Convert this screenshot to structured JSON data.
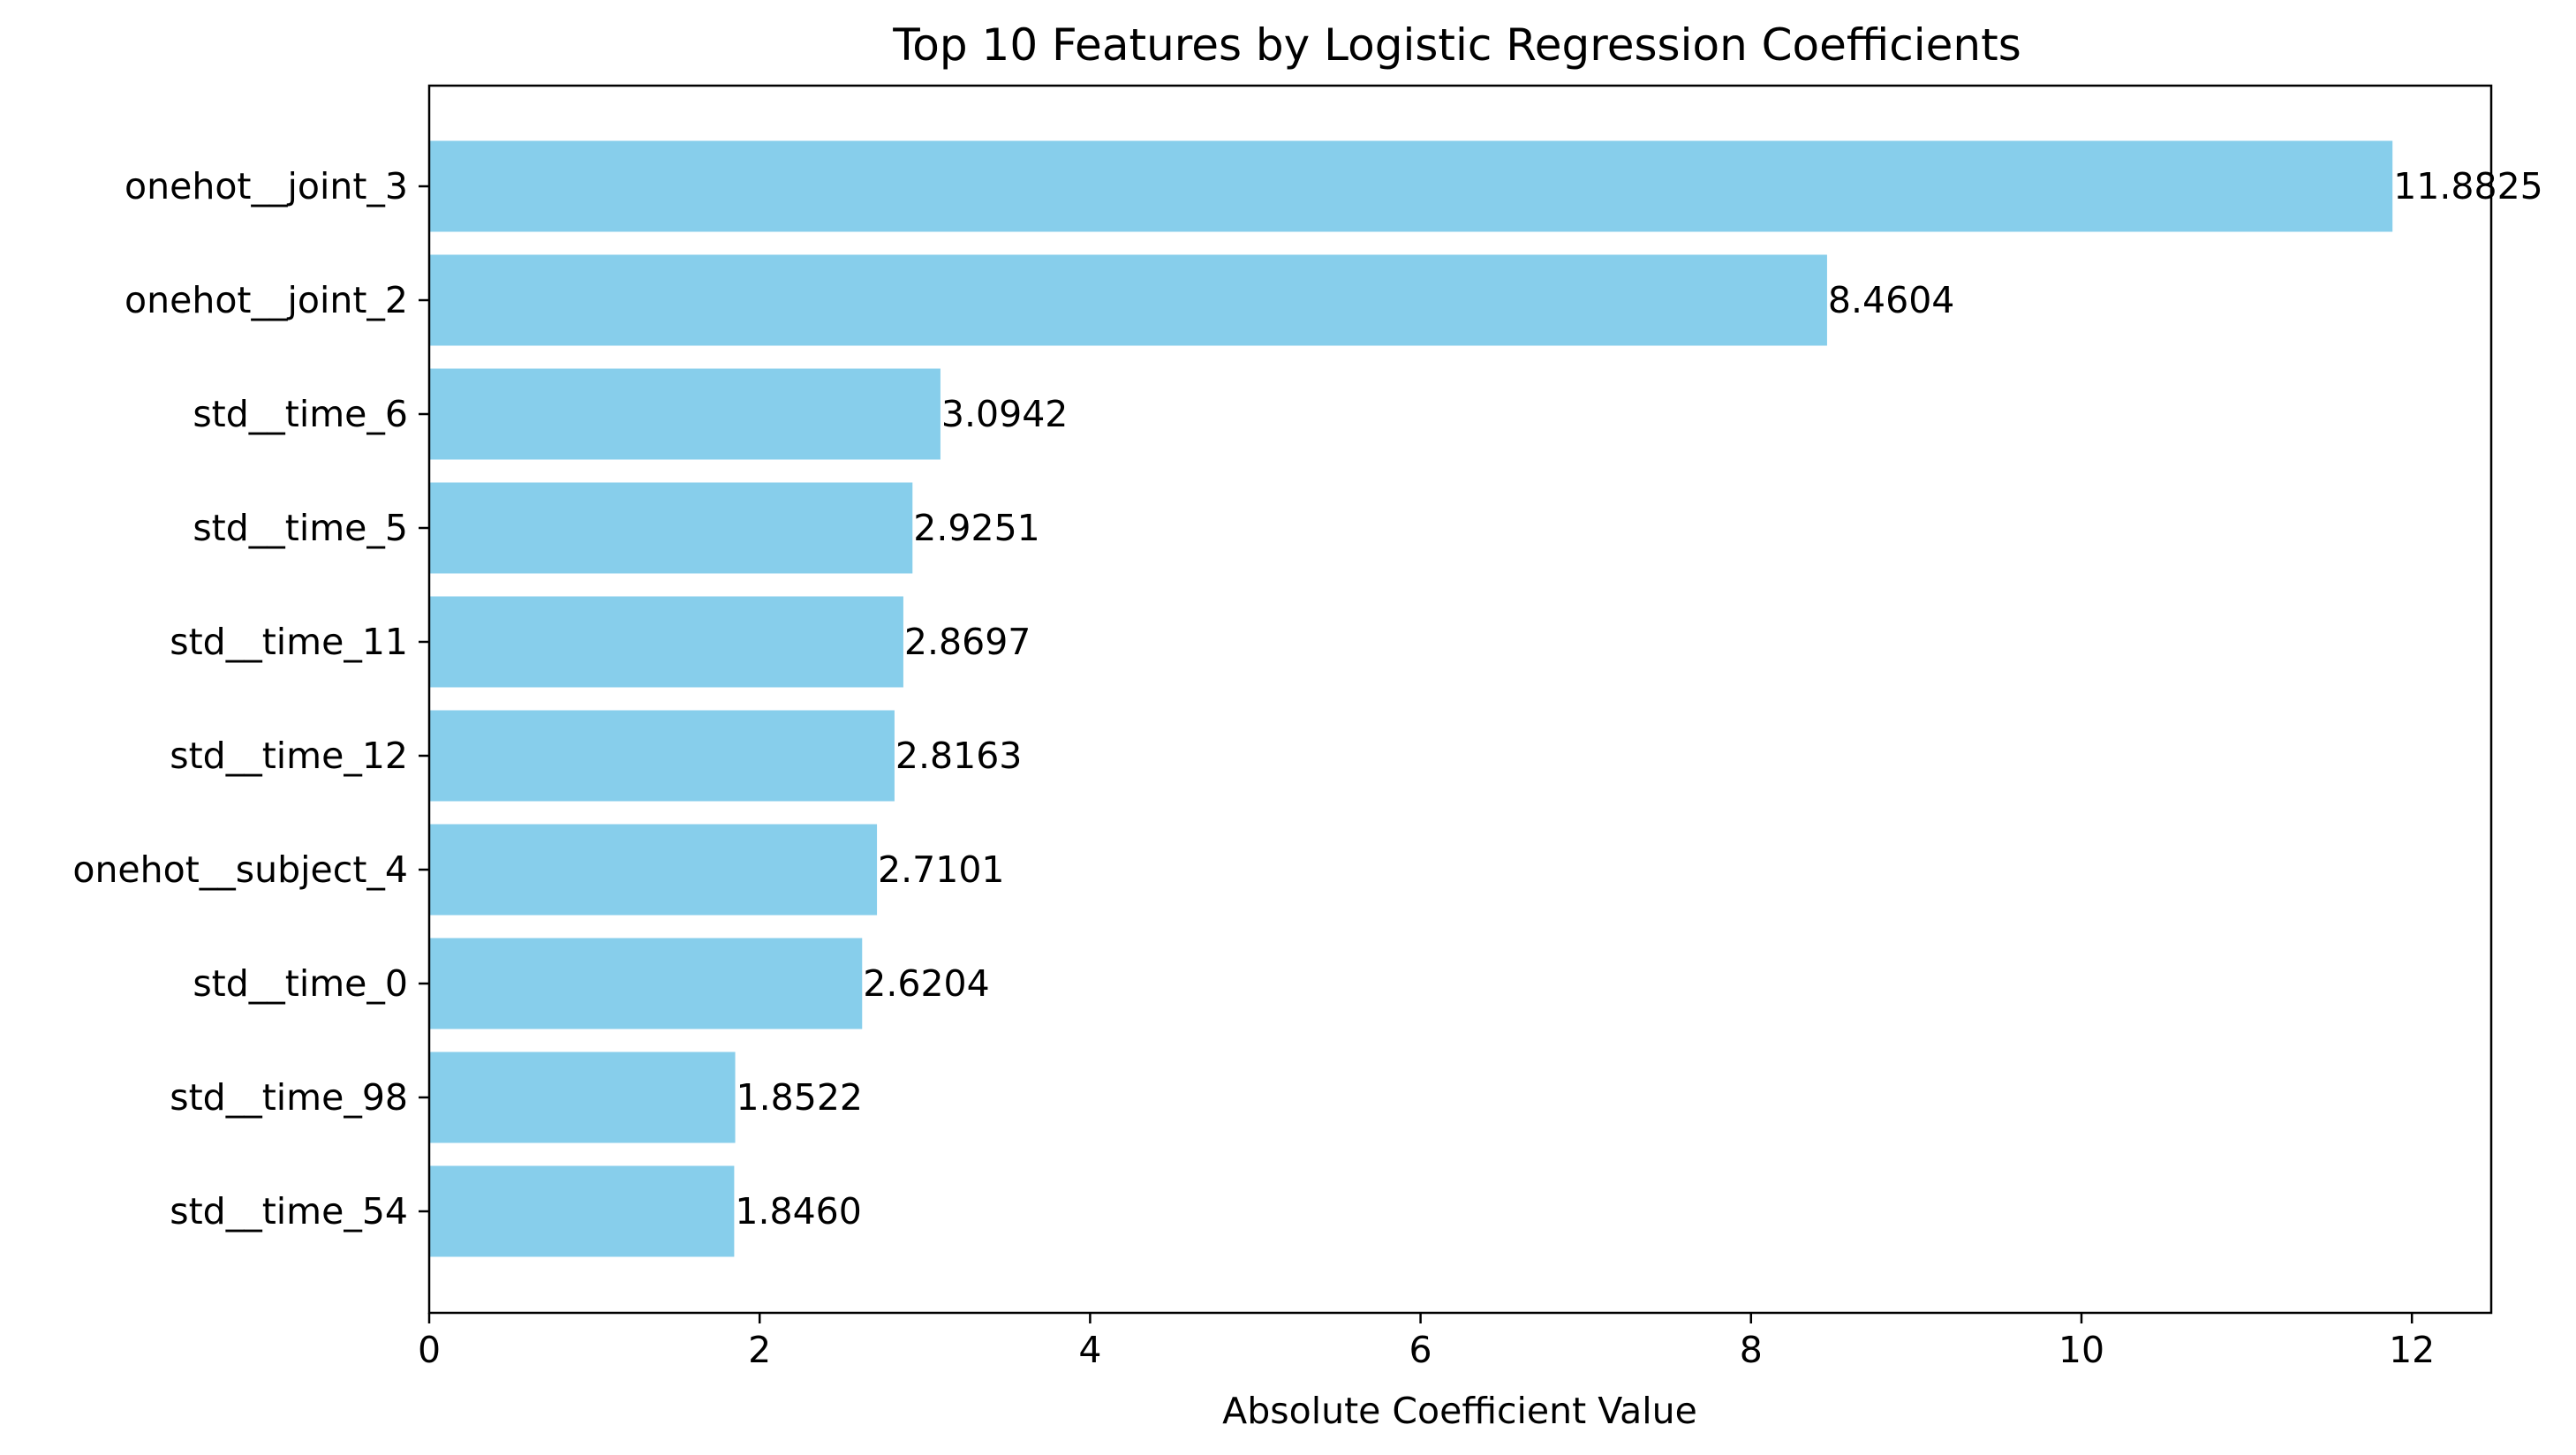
{
  "chart_data": {
    "type": "bar",
    "orientation": "horizontal",
    "title": "Top 10 Features by Logistic Regression Coefficients",
    "xlabel": "Absolute Coefficient Value",
    "ylabel": "",
    "xlim": [
      0,
      12.48
    ],
    "xticks": [
      0,
      2,
      4,
      6,
      8,
      10,
      12
    ],
    "categories": [
      "onehot__joint_3",
      "onehot__joint_2",
      "std__time_6",
      "std__time_5",
      "std__time_11",
      "std__time_12",
      "onehot__subject_4",
      "std__time_0",
      "std__time_98",
      "std__time_54"
    ],
    "values": [
      11.8825,
      8.4604,
      3.0942,
      2.9251,
      2.8697,
      2.8163,
      2.7101,
      2.6204,
      1.8522,
      1.846
    ],
    "value_labels": [
      "11.8825",
      "8.4604",
      "3.0942",
      "2.9251",
      "2.8697",
      "2.8163",
      "2.7101",
      "2.6204",
      "1.8522",
      "1.8460"
    ],
    "bar_color": "#87ceeb",
    "grid": false,
    "legend": "none"
  }
}
